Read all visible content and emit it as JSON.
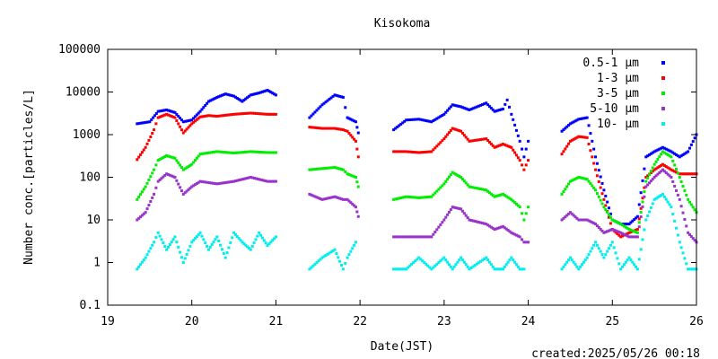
{
  "chart_data": {
    "type": "scatter",
    "title": "Kisokoma",
    "xlabel": "Date(JST)",
    "ylabel": "Number conc.[particles/L]",
    "footer": "created:2025/05/26 00:18",
    "xlim": [
      19,
      26
    ],
    "ylim": [
      0.1,
      100000
    ],
    "yscale": "log",
    "grid": false,
    "legend_position": "top-right",
    "x_ticks": [
      "19",
      "20",
      "21",
      "22",
      "23",
      "24",
      "25",
      "26"
    ],
    "y_ticks": [
      "0.1",
      "1",
      "10",
      "100",
      "1000",
      "10000",
      "100000"
    ],
    "series": [
      {
        "name": "0.5-1 μm",
        "color": "#0000ff",
        "points": [
          [
            19.35,
            1800
          ],
          [
            19.5,
            2000
          ],
          [
            19.6,
            3500
          ],
          [
            19.7,
            3800
          ],
          [
            19.8,
            3300
          ],
          [
            19.9,
            2000
          ],
          [
            20.0,
            2200
          ],
          [
            20.1,
            3500
          ],
          [
            20.2,
            6000
          ],
          [
            20.3,
            7500
          ],
          [
            20.4,
            9000
          ],
          [
            20.5,
            8000
          ],
          [
            20.6,
            6000
          ],
          [
            20.7,
            8500
          ],
          [
            20.8,
            9500
          ],
          [
            20.9,
            11000
          ],
          [
            21.0,
            8500
          ],
          [
            21.4,
            2500
          ],
          [
            21.55,
            5000
          ],
          [
            21.7,
            8500
          ],
          [
            21.8,
            7500
          ],
          [
            21.85,
            2500
          ],
          [
            21.95,
            2000
          ],
          [
            21.98,
            1100
          ],
          [
            22.4,
            1300
          ],
          [
            22.55,
            2200
          ],
          [
            22.7,
            2300
          ],
          [
            22.85,
            2000
          ],
          [
            23.0,
            3000
          ],
          [
            23.1,
            5000
          ],
          [
            23.2,
            4500
          ],
          [
            23.3,
            3800
          ],
          [
            23.5,
            5500
          ],
          [
            23.6,
            3500
          ],
          [
            23.7,
            4000
          ],
          [
            23.75,
            6500
          ],
          [
            23.8,
            3000
          ],
          [
            23.9,
            700
          ],
          [
            23.95,
            300
          ],
          [
            24.0,
            700
          ],
          [
            24.4,
            1200
          ],
          [
            24.5,
            1800
          ],
          [
            24.6,
            2300
          ],
          [
            24.7,
            2500
          ],
          [
            24.8,
            300
          ],
          [
            24.9,
            50
          ],
          [
            25.0,
            10
          ],
          [
            25.1,
            8
          ],
          [
            25.2,
            8
          ],
          [
            25.3,
            12
          ],
          [
            25.4,
            300
          ],
          [
            25.5,
            400
          ],
          [
            25.6,
            500
          ],
          [
            25.7,
            400
          ],
          [
            25.8,
            300
          ],
          [
            25.9,
            400
          ],
          [
            26.0,
            1000
          ]
        ]
      },
      {
        "name": "1-3 μm",
        "color": "#ff0000",
        "points": [
          [
            19.35,
            260
          ],
          [
            19.45,
            500
          ],
          [
            19.55,
            1300
          ],
          [
            19.6,
            2500
          ],
          [
            19.7,
            3000
          ],
          [
            19.8,
            2500
          ],
          [
            19.9,
            1100
          ],
          [
            20.0,
            1800
          ],
          [
            20.1,
            2600
          ],
          [
            20.2,
            2800
          ],
          [
            20.3,
            2700
          ],
          [
            20.5,
            3000
          ],
          [
            20.7,
            3200
          ],
          [
            20.9,
            3000
          ],
          [
            21.0,
            3000
          ],
          [
            21.4,
            1500
          ],
          [
            21.55,
            1400
          ],
          [
            21.7,
            1400
          ],
          [
            21.8,
            1300
          ],
          [
            21.85,
            1200
          ],
          [
            21.95,
            700
          ],
          [
            21.98,
            300
          ],
          [
            22.4,
            400
          ],
          [
            22.55,
            400
          ],
          [
            22.7,
            380
          ],
          [
            22.85,
            400
          ],
          [
            23.0,
            800
          ],
          [
            23.1,
            1400
          ],
          [
            23.2,
            1200
          ],
          [
            23.3,
            700
          ],
          [
            23.5,
            800
          ],
          [
            23.6,
            500
          ],
          [
            23.7,
            600
          ],
          [
            23.8,
            500
          ],
          [
            23.9,
            250
          ],
          [
            23.95,
            150
          ],
          [
            24.0,
            250
          ],
          [
            24.4,
            350
          ],
          [
            24.5,
            700
          ],
          [
            24.6,
            900
          ],
          [
            24.7,
            850
          ],
          [
            24.8,
            150
          ],
          [
            24.9,
            30
          ],
          [
            25.0,
            6
          ],
          [
            25.1,
            4
          ],
          [
            25.2,
            5
          ],
          [
            25.3,
            6
          ],
          [
            25.4,
            100
          ],
          [
            25.5,
            150
          ],
          [
            25.6,
            200
          ],
          [
            25.7,
            150
          ],
          [
            25.8,
            120
          ],
          [
            25.9,
            120
          ],
          [
            26.0,
            120
          ]
        ]
      },
      {
        "name": "3-5 μm",
        "color": "#00ee00",
        "points": [
          [
            19.35,
            30
          ],
          [
            19.45,
            60
          ],
          [
            19.55,
            150
          ],
          [
            19.6,
            250
          ],
          [
            19.7,
            320
          ],
          [
            19.8,
            280
          ],
          [
            19.9,
            150
          ],
          [
            20.0,
            200
          ],
          [
            20.1,
            350
          ],
          [
            20.3,
            400
          ],
          [
            20.5,
            370
          ],
          [
            20.7,
            400
          ],
          [
            20.9,
            380
          ],
          [
            21.0,
            380
          ],
          [
            21.4,
            150
          ],
          [
            21.55,
            160
          ],
          [
            21.7,
            170
          ],
          [
            21.8,
            150
          ],
          [
            21.85,
            120
          ],
          [
            21.95,
            100
          ],
          [
            21.98,
            60
          ],
          [
            22.4,
            30
          ],
          [
            22.55,
            35
          ],
          [
            22.7,
            33
          ],
          [
            22.85,
            35
          ],
          [
            23.0,
            70
          ],
          [
            23.1,
            130
          ],
          [
            23.2,
            100
          ],
          [
            23.3,
            60
          ],
          [
            23.5,
            50
          ],
          [
            23.6,
            35
          ],
          [
            23.7,
            40
          ],
          [
            23.8,
            30
          ],
          [
            23.9,
            20
          ],
          [
            23.95,
            10
          ],
          [
            24.0,
            20
          ],
          [
            24.4,
            40
          ],
          [
            24.5,
            80
          ],
          [
            24.6,
            100
          ],
          [
            24.7,
            90
          ],
          [
            24.8,
            50
          ],
          [
            24.9,
            20
          ],
          [
            25.0,
            10
          ],
          [
            25.1,
            8
          ],
          [
            25.2,
            6
          ],
          [
            25.3,
            5
          ],
          [
            25.4,
            80
          ],
          [
            25.5,
            200
          ],
          [
            25.6,
            400
          ],
          [
            25.7,
            300
          ],
          [
            25.8,
            100
          ],
          [
            25.9,
            30
          ],
          [
            26.0,
            15
          ]
        ]
      },
      {
        "name": "5-10 μm",
        "color": "#9933cc",
        "points": [
          [
            19.35,
            10
          ],
          [
            19.45,
            15
          ],
          [
            19.55,
            40
          ],
          [
            19.6,
            80
          ],
          [
            19.7,
            120
          ],
          [
            19.8,
            100
          ],
          [
            19.9,
            40
          ],
          [
            20.0,
            60
          ],
          [
            20.1,
            80
          ],
          [
            20.3,
            70
          ],
          [
            20.5,
            80
          ],
          [
            20.7,
            100
          ],
          [
            20.9,
            80
          ],
          [
            21.0,
            80
          ],
          [
            21.4,
            40
          ],
          [
            21.55,
            30
          ],
          [
            21.7,
            35
          ],
          [
            21.8,
            30
          ],
          [
            21.85,
            30
          ],
          [
            21.95,
            20
          ],
          [
            21.98,
            12
          ],
          [
            22.4,
            4
          ],
          [
            22.55,
            4
          ],
          [
            22.7,
            4
          ],
          [
            22.85,
            4
          ],
          [
            23.0,
            10
          ],
          [
            23.1,
            20
          ],
          [
            23.2,
            18
          ],
          [
            23.3,
            10
          ],
          [
            23.5,
            8
          ],
          [
            23.6,
            6
          ],
          [
            23.7,
            7
          ],
          [
            23.8,
            5
          ],
          [
            23.9,
            4
          ],
          [
            23.95,
            3
          ],
          [
            24.0,
            3
          ],
          [
            24.4,
            10
          ],
          [
            24.5,
            15
          ],
          [
            24.6,
            10
          ],
          [
            24.7,
            10
          ],
          [
            24.8,
            8
          ],
          [
            24.9,
            5
          ],
          [
            25.0,
            6
          ],
          [
            25.1,
            5
          ],
          [
            25.2,
            4
          ],
          [
            25.3,
            4
          ],
          [
            25.4,
            60
          ],
          [
            25.5,
            100
          ],
          [
            25.6,
            150
          ],
          [
            25.7,
            100
          ],
          [
            25.8,
            30
          ],
          [
            25.9,
            5
          ],
          [
            26.0,
            3
          ]
        ]
      },
      {
        "name": "10- μm",
        "color": "#00eeee",
        "points": [
          [
            19.35,
            0.7
          ],
          [
            19.45,
            1.3
          ],
          [
            19.55,
            3
          ],
          [
            19.6,
            5
          ],
          [
            19.7,
            2
          ],
          [
            19.8,
            4
          ],
          [
            19.9,
            1
          ],
          [
            20.0,
            3
          ],
          [
            20.1,
            5
          ],
          [
            20.2,
            2
          ],
          [
            20.3,
            4
          ],
          [
            20.4,
            1.3
          ],
          [
            20.5,
            5
          ],
          [
            20.6,
            3
          ],
          [
            20.7,
            2
          ],
          [
            20.8,
            5
          ],
          [
            20.9,
            2.5
          ],
          [
            21.0,
            4
          ],
          [
            21.4,
            0.7
          ],
          [
            21.55,
            1.3
          ],
          [
            21.7,
            2
          ],
          [
            21.8,
            0.7
          ],
          [
            21.85,
            1.3
          ],
          [
            21.95,
            3
          ],
          [
            22.4,
            0.7
          ],
          [
            22.55,
            0.7
          ],
          [
            22.7,
            1.3
          ],
          [
            22.85,
            0.7
          ],
          [
            23.0,
            1.3
          ],
          [
            23.1,
            0.7
          ],
          [
            23.2,
            1.3
          ],
          [
            23.3,
            0.7
          ],
          [
            23.5,
            1.3
          ],
          [
            23.6,
            0.7
          ],
          [
            23.7,
            0.7
          ],
          [
            23.8,
            1.3
          ],
          [
            23.9,
            0.7
          ],
          [
            23.95,
            0.7
          ],
          [
            24.4,
            0.7
          ],
          [
            24.5,
            1.3
          ],
          [
            24.6,
            0.7
          ],
          [
            24.7,
            1.3
          ],
          [
            24.8,
            3
          ],
          [
            24.9,
            1.3
          ],
          [
            25.0,
            3
          ],
          [
            25.1,
            0.7
          ],
          [
            25.2,
            1.3
          ],
          [
            25.3,
            0.7
          ],
          [
            25.4,
            10
          ],
          [
            25.5,
            30
          ],
          [
            25.6,
            40
          ],
          [
            25.7,
            20
          ],
          [
            25.8,
            3
          ],
          [
            25.9,
            0.7
          ],
          [
            26.0,
            0.7
          ]
        ]
      }
    ]
  }
}
